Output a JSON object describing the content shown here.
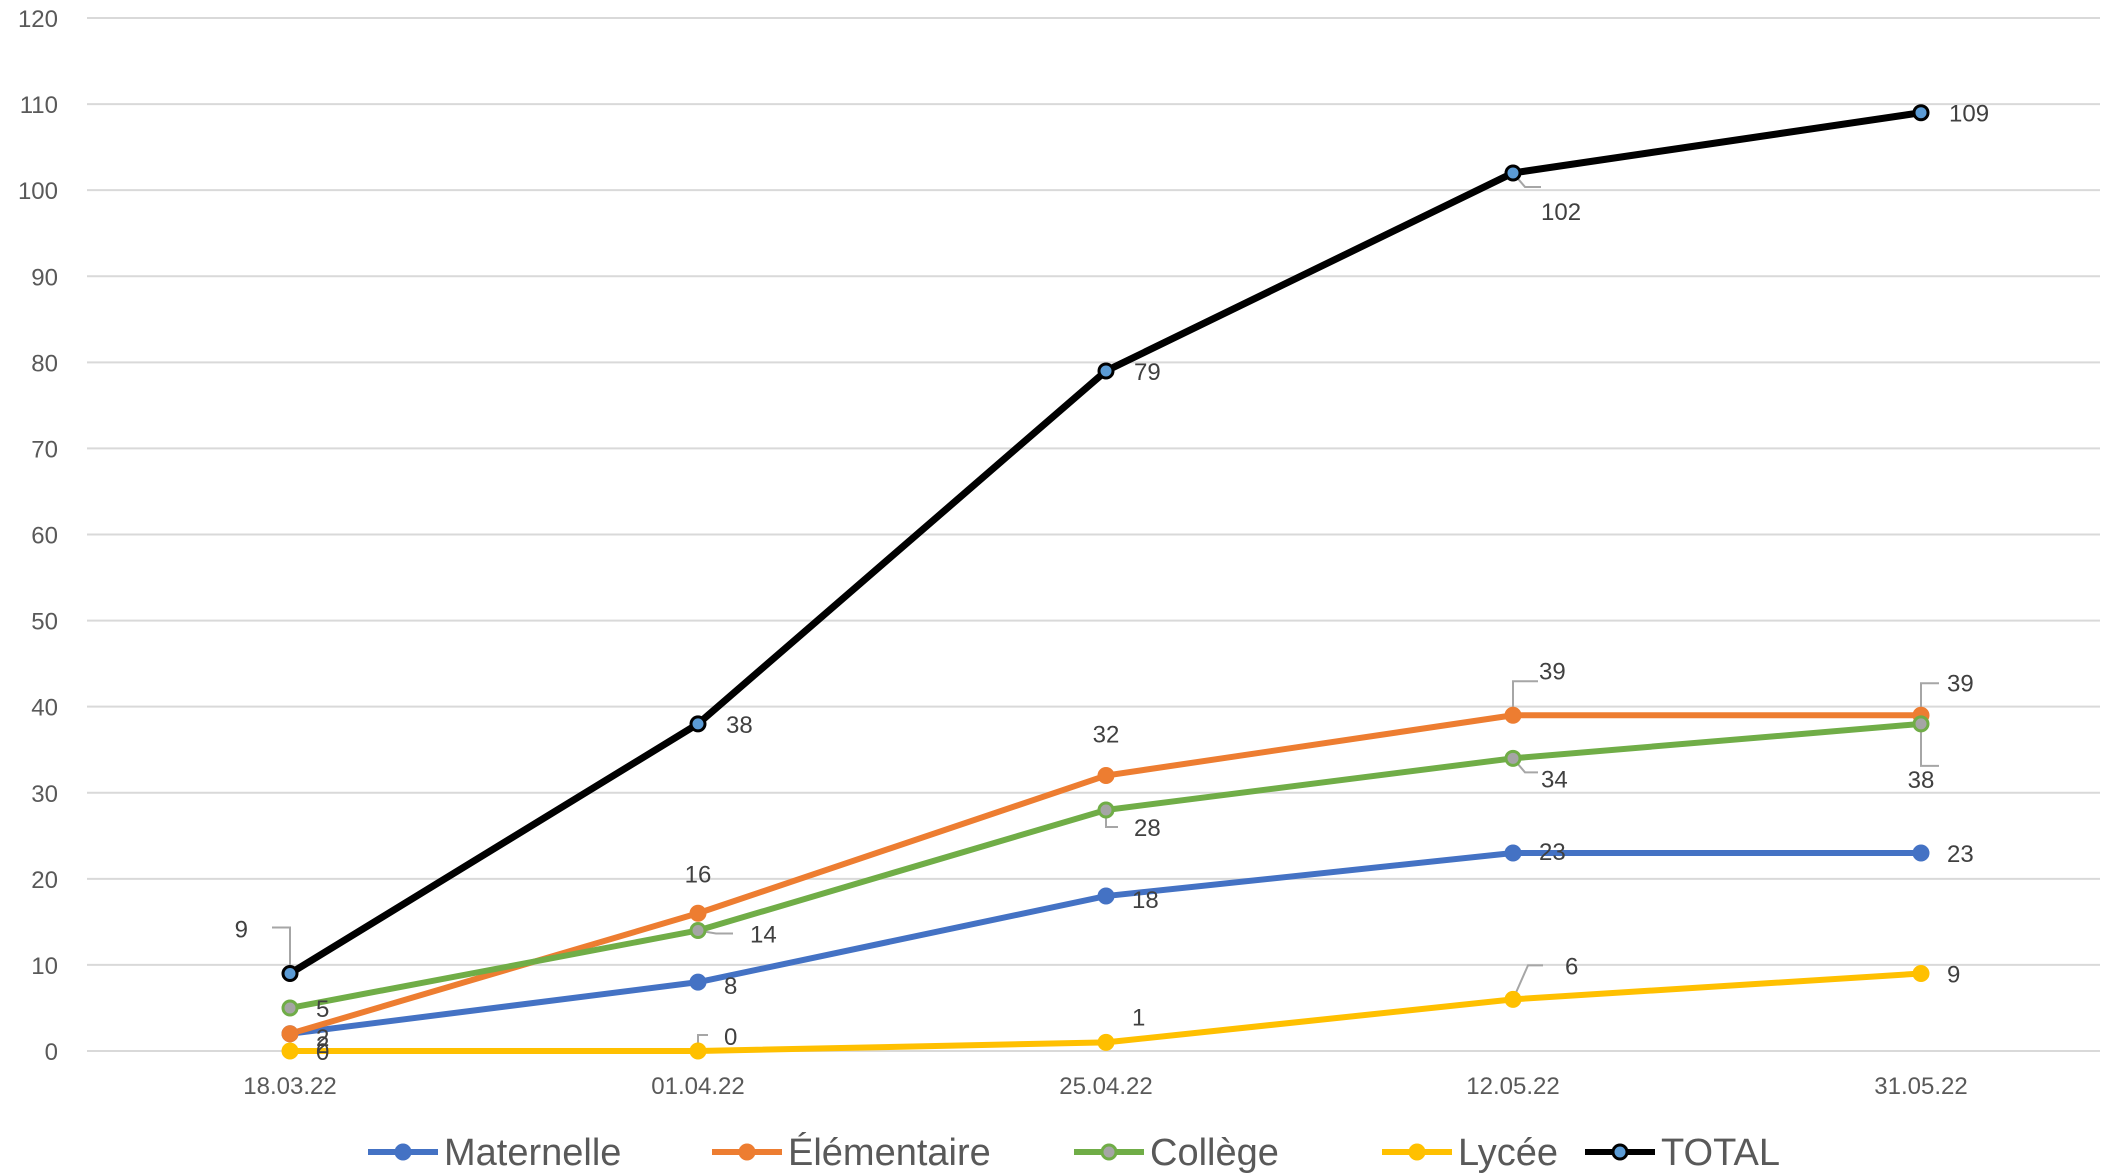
{
  "chart_data": {
    "type": "line",
    "title": "",
    "xlabel": "",
    "ylabel": "",
    "categories": [
      "18.03.22",
      "01.04.22",
      "25.04.22",
      "12.05.22",
      "31.05.22"
    ],
    "ylim": [
      0,
      120
    ],
    "yticks": [
      0,
      10,
      20,
      30,
      40,
      50,
      60,
      70,
      80,
      90,
      100,
      110,
      120
    ],
    "grid": "horizontal",
    "legend_position": "bottom",
    "series": [
      {
        "name": "Maternelle",
        "color": "#4472C4",
        "values": [
          2,
          8,
          18,
          23,
          23
        ]
      },
      {
        "name": "Élémentaire",
        "color": "#ED7D31",
        "values": [
          2,
          16,
          32,
          39,
          39
        ]
      },
      {
        "name": "Collège",
        "color": "#70AD47",
        "marker_color": "#A5A5A5",
        "values": [
          5,
          14,
          28,
          34,
          38
        ]
      },
      {
        "name": "Lycée",
        "color": "#FFC000",
        "values": [
          0,
          0,
          1,
          6,
          9
        ]
      },
      {
        "name": "TOTAL",
        "color": "#000000",
        "marker_color": "#5B9BD5",
        "values": [
          9,
          38,
          79,
          102,
          109
        ]
      }
    ]
  }
}
